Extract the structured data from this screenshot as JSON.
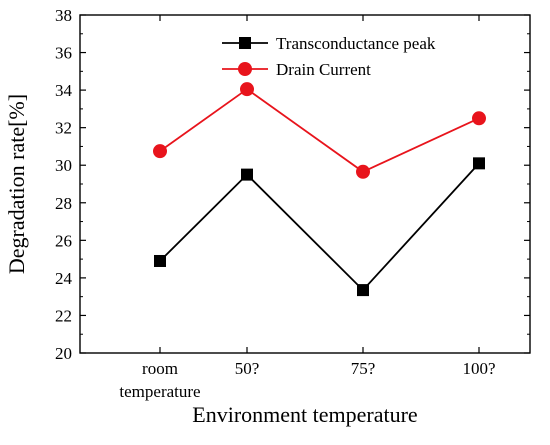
{
  "chart_data": {
    "type": "line",
    "title": "",
    "xlabel": "Environment temperature",
    "ylabel": "Degradation rate[%]",
    "categories": [
      [
        "room",
        "temperature"
      ],
      [
        "50?"
      ],
      [
        "75?"
      ],
      [
        "100?"
      ]
    ],
    "ylim": [
      20,
      38
    ],
    "yticks": [
      20,
      22,
      24,
      26,
      28,
      30,
      32,
      34,
      36,
      38
    ],
    "grid": false,
    "legend_position": "top-right",
    "series": [
      {
        "name": "Transconductance peak",
        "values": [
          24.9,
          29.5,
          23.35,
          30.1
        ],
        "color": "#000000",
        "marker": "square"
      },
      {
        "name": "Drain Current",
        "values": [
          30.75,
          34.05,
          29.65,
          32.5
        ],
        "color": "#e8141c",
        "marker": "circle"
      }
    ]
  }
}
